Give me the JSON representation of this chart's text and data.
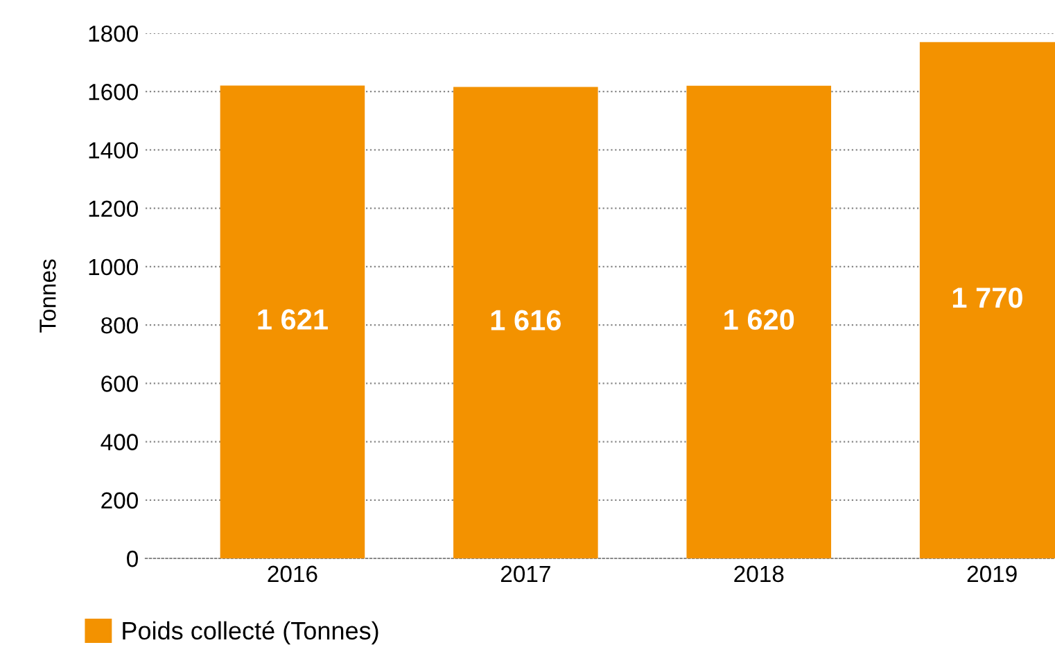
{
  "chart_data": {
    "type": "bar",
    "ylabel": "Tonnes",
    "categories": [
      "2016",
      "2017",
      "2018",
      "2019"
    ],
    "series": [
      {
        "name": "Poids collecté (Tonnes)",
        "color": "#f39200",
        "values": [
          1621,
          1616,
          1620,
          1770
        ],
        "value_labels": [
          "1 621",
          "1 616",
          "1 620",
          "1 770"
        ]
      }
    ],
    "ylim": [
      0,
      1800
    ],
    "yticks": [
      0,
      200,
      400,
      600,
      800,
      1000,
      1200,
      1400,
      1600,
      1800
    ],
    "grid": "y",
    "legend": "bottom"
  }
}
